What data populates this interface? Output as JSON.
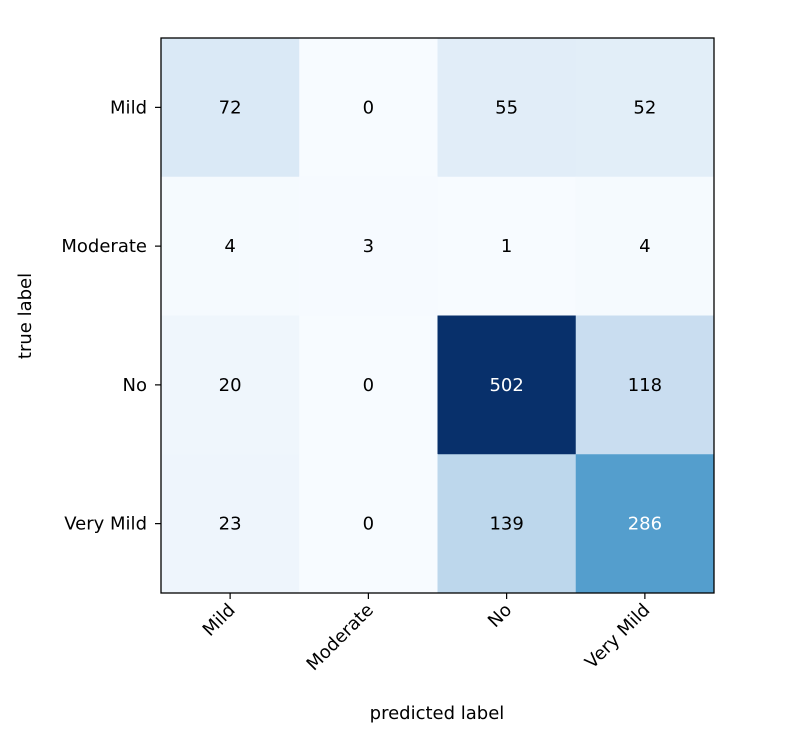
{
  "chart_data": {
    "type": "heatmap",
    "title": "",
    "xlabel": "predicted label",
    "ylabel": "true label",
    "x_categories": [
      "Mild",
      "Moderate",
      "No",
      "Very Mild"
    ],
    "y_categories": [
      "Mild",
      "Moderate",
      "No",
      "Very Mild"
    ],
    "values": [
      [
        72,
        0,
        55,
        52
      ],
      [
        4,
        3,
        1,
        4
      ],
      [
        20,
        0,
        502,
        118
      ],
      [
        23,
        0,
        139,
        286
      ]
    ],
    "colormap": "Blues",
    "value_range": [
      0,
      502
    ],
    "colors": {
      "low": "#f7fbff",
      "high": "#08306b",
      "text_dark": "#000000",
      "text_light": "#ffffff"
    },
    "x_tick_rotation": 45,
    "grid": false,
    "legend": "none"
  }
}
